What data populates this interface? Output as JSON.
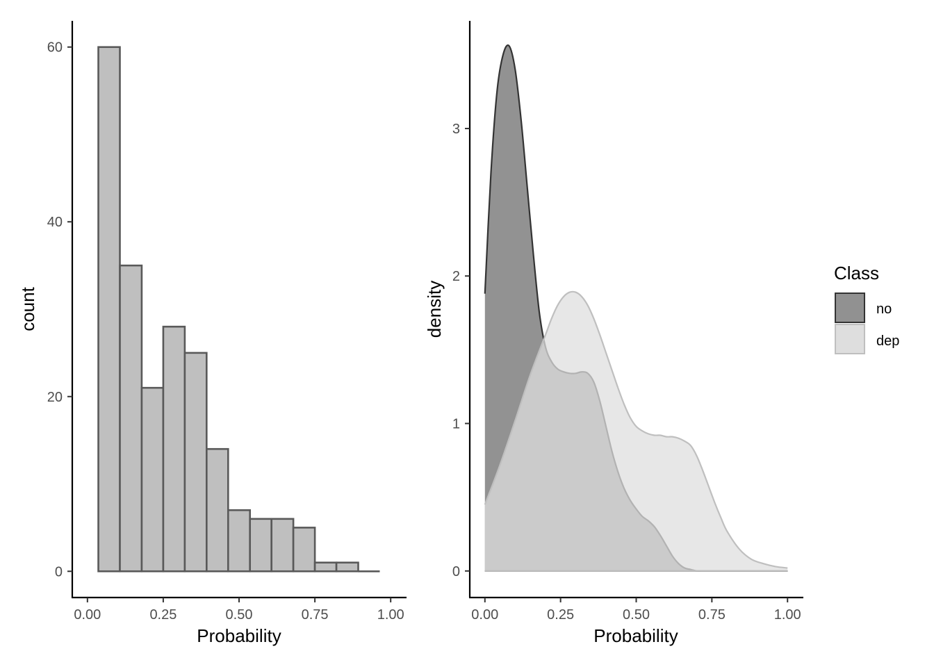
{
  "chart_data": [
    {
      "type": "bar",
      "subtype": "histogram",
      "xlabel": "Probability",
      "ylabel": "count",
      "xlim": [
        -0.05,
        1.05
      ],
      "ylim": [
        -3,
        63
      ],
      "xticks": [
        0,
        0.25,
        0.5,
        0.75,
        1
      ],
      "xtick_labels": [
        "0.00",
        "0.25",
        "0.50",
        "0.75",
        "1.00"
      ],
      "yticks": [
        0,
        20,
        40,
        60
      ],
      "ytick_labels": [
        "0",
        "20",
        "40",
        "60"
      ],
      "grid": false,
      "colors": {
        "fill": "#bfbfbf",
        "stroke": "#595959"
      },
      "bins": [
        {
          "x0": 0.036,
          "x1": 0.107,
          "count": 60
        },
        {
          "x0": 0.107,
          "x1": 0.179,
          "count": 35
        },
        {
          "x0": 0.179,
          "x1": 0.25,
          "count": 21
        },
        {
          "x0": 0.25,
          "x1": 0.321,
          "count": 28
        },
        {
          "x0": 0.321,
          "x1": 0.393,
          "count": 25
        },
        {
          "x0": 0.393,
          "x1": 0.464,
          "count": 14
        },
        {
          "x0": 0.464,
          "x1": 0.536,
          "count": 7
        },
        {
          "x0": 0.536,
          "x1": 0.607,
          "count": 6
        },
        {
          "x0": 0.607,
          "x1": 0.679,
          "count": 6
        },
        {
          "x0": 0.679,
          "x1": 0.75,
          "count": 5
        },
        {
          "x0": 0.75,
          "x1": 0.821,
          "count": 1
        },
        {
          "x0": 0.821,
          "x1": 0.893,
          "count": 1
        },
        {
          "x0": 0.893,
          "x1": 0.964,
          "count": 0
        }
      ]
    },
    {
      "type": "area",
      "subtype": "density",
      "xlabel": "Probability",
      "ylabel": "density",
      "xlim": [
        -0.05,
        1.05
      ],
      "ylim": [
        -0.18,
        3.73
      ],
      "xticks": [
        0,
        0.25,
        0.5,
        0.75,
        1
      ],
      "xtick_labels": [
        "0.00",
        "0.25",
        "0.50",
        "0.75",
        "1.00"
      ],
      "yticks": [
        0,
        1,
        2,
        3
      ],
      "ytick_labels": [
        "0",
        "1",
        "2",
        "3"
      ],
      "grid": false,
      "legend": {
        "title": "Class",
        "position": "right"
      },
      "series": [
        {
          "name": "no",
          "fill": "#919191",
          "stroke": "#333333",
          "x": [
            0,
            0.02,
            0.04,
            0.06,
            0.08,
            0.1,
            0.12,
            0.14,
            0.16,
            0.18,
            0.2,
            0.22,
            0.24,
            0.26,
            0.28,
            0.3,
            0.32,
            0.34,
            0.36,
            0.38,
            0.4,
            0.42,
            0.44,
            0.46,
            0.48,
            0.5,
            0.52,
            0.54,
            0.56,
            0.58,
            0.6,
            0.62,
            0.64,
            0.66,
            0.68,
            0.7,
            0.72,
            0.74,
            0.76,
            0.78,
            0.8,
            0.85,
            0.9,
            0.95,
            1.0
          ],
          "y": [
            1.88,
            2.7,
            3.25,
            3.5,
            3.56,
            3.4,
            3.05,
            2.6,
            2.15,
            1.75,
            1.52,
            1.42,
            1.37,
            1.35,
            1.34,
            1.34,
            1.35,
            1.34,
            1.28,
            1.15,
            0.98,
            0.81,
            0.67,
            0.56,
            0.48,
            0.42,
            0.37,
            0.34,
            0.3,
            0.24,
            0.17,
            0.1,
            0.05,
            0.02,
            0.01,
            0.0,
            0.0,
            0.0,
            0.0,
            0.0,
            0.0,
            0.0,
            0.0,
            0.0,
            0.0
          ]
        },
        {
          "name": "dep",
          "fill": "#dedede",
          "stroke": "#bfbfbf",
          "x": [
            0,
            0.05,
            0.1,
            0.15,
            0.2,
            0.22,
            0.24,
            0.26,
            0.28,
            0.3,
            0.32,
            0.34,
            0.36,
            0.38,
            0.4,
            0.42,
            0.44,
            0.46,
            0.48,
            0.5,
            0.52,
            0.54,
            0.56,
            0.58,
            0.6,
            0.62,
            0.64,
            0.66,
            0.68,
            0.7,
            0.72,
            0.74,
            0.76,
            0.78,
            0.8,
            0.84,
            0.88,
            0.92,
            0.96,
            1.0
          ],
          "y": [
            0.45,
            0.72,
            1.02,
            1.33,
            1.6,
            1.71,
            1.8,
            1.86,
            1.89,
            1.89,
            1.86,
            1.8,
            1.71,
            1.6,
            1.48,
            1.36,
            1.24,
            1.13,
            1.04,
            0.98,
            0.95,
            0.93,
            0.92,
            0.92,
            0.91,
            0.91,
            0.9,
            0.88,
            0.85,
            0.78,
            0.68,
            0.57,
            0.46,
            0.36,
            0.27,
            0.15,
            0.08,
            0.05,
            0.03,
            0.02
          ]
        }
      ]
    }
  ]
}
